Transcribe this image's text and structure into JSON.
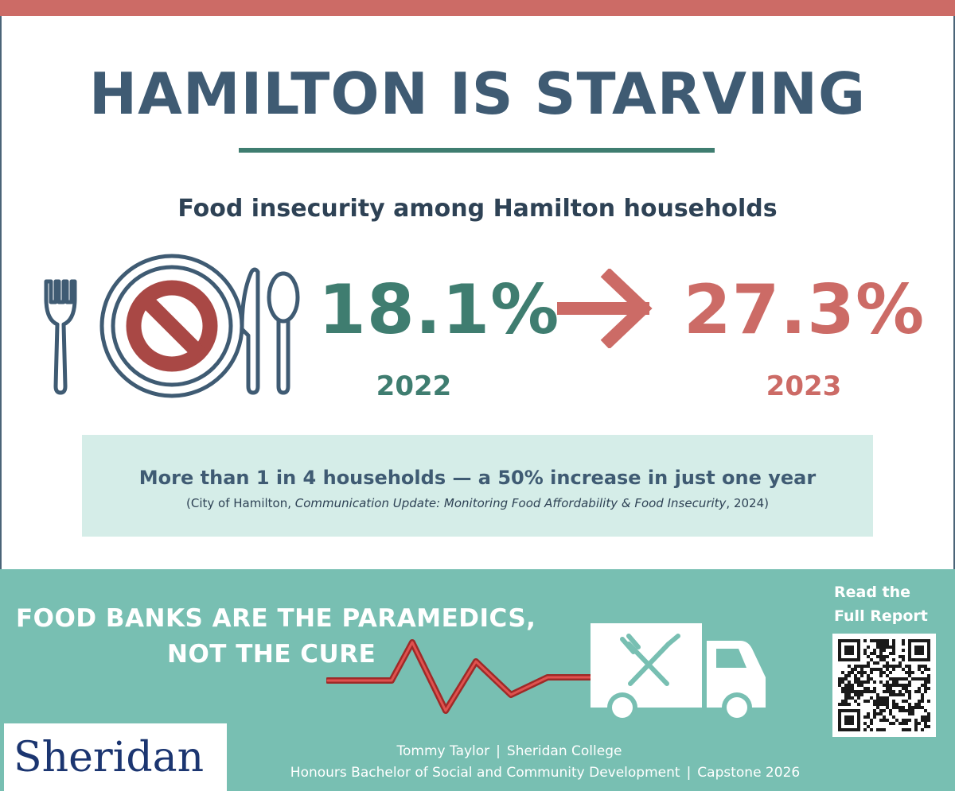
{
  "colors": {
    "accent_red": "#cc6b66",
    "dark_blue": "#3f5b73",
    "green": "#3f7d70",
    "mint": "#d5ede8",
    "teal_band": "#78bfb2",
    "sheridan_navy": "#1b3570"
  },
  "header": {
    "title": "HAMILTON IS STARVING",
    "subtitle": "Food insecurity among Hamilton households"
  },
  "stats": {
    "before": {
      "value": "18.1%",
      "year": "2022"
    },
    "after": {
      "value": "27.3%",
      "year": "2023"
    }
  },
  "icons": {
    "plate": "no-food-plate-icon",
    "arrow": "arrow-right-icon",
    "truck": "food-truck-icon",
    "heartbeat": "heartbeat-line-icon",
    "qr": "qr-code-icon"
  },
  "callout": {
    "main": "More than 1 in 4 households — a 50% increase in just one year",
    "cite_prefix": "(City of Hamilton, ",
    "cite_title": "Communication Update: Monitoring Food Affordability & Food Insecurity",
    "cite_suffix": ", 2024)"
  },
  "slogan": {
    "line1": "FOOD BANKS ARE THE PARAMEDICS,",
    "line2": "NOT THE CURE"
  },
  "report": {
    "line1": "Read the",
    "line2": "Full Report >"
  },
  "logo": {
    "text": "Sheridan"
  },
  "credits": {
    "name": "Tommy Taylor",
    "college": "Sheridan College",
    "program": "Honours Bachelor of Social and Community Development",
    "capstone": "Capstone 2026",
    "separator": "|"
  }
}
